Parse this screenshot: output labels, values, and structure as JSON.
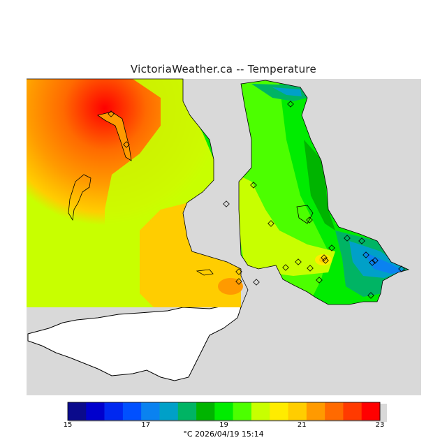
{
  "title": "VictoriaWeather.ca -- Temperature",
  "legend": {
    "colors": [
      "#0a0a8c",
      "#0000cd",
      "#0028f0",
      "#0050ff",
      "#0a82f0",
      "#00a0c8",
      "#00b464",
      "#00b400",
      "#00ec00",
      "#4cff00",
      "#c8ff00",
      "#ffec00",
      "#ffcd00",
      "#ff9a00",
      "#ff6a00",
      "#ff3a00",
      "#ff0000"
    ],
    "ticks": [
      "15",
      "17",
      "19",
      "21",
      "23"
    ],
    "unit_timestamp": "°C  2026/04/19 15:14"
  },
  "colors": {
    "background": "#d9d9d9",
    "land_unshaded": "#ffffff",
    "outline": "#000000"
  },
  "stations": 24
}
